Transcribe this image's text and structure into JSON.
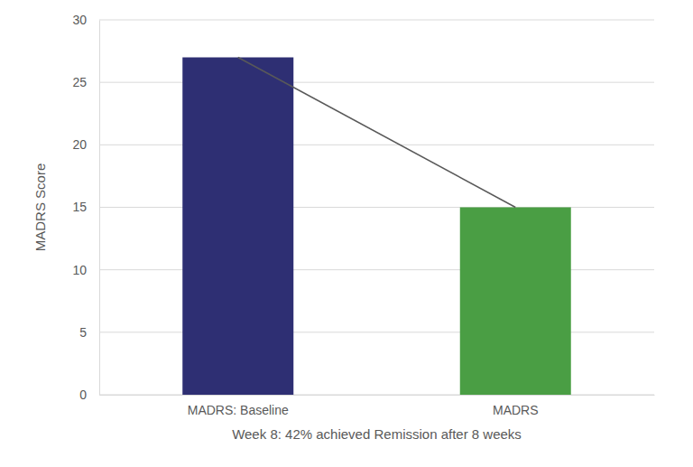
{
  "chart_data": {
    "type": "bar",
    "x_label": "Week 8: 42% achieved Remission after 8 weeks",
    "y_label": "MADRS Score",
    "categories": [
      "MADRS: Baseline",
      "MADRS"
    ],
    "series": [
      {
        "type": "bar",
        "colors": [
          "#2e2f73",
          "#4a9e44"
        ],
        "values": [
          27,
          15
        ]
      },
      {
        "type": "line",
        "color": "#595959",
        "values": [
          27,
          15
        ]
      }
    ],
    "ylim": [
      0,
      30
    ],
    "yticks": [
      0,
      5,
      10,
      15,
      20,
      25,
      30
    ],
    "grid": true
  }
}
